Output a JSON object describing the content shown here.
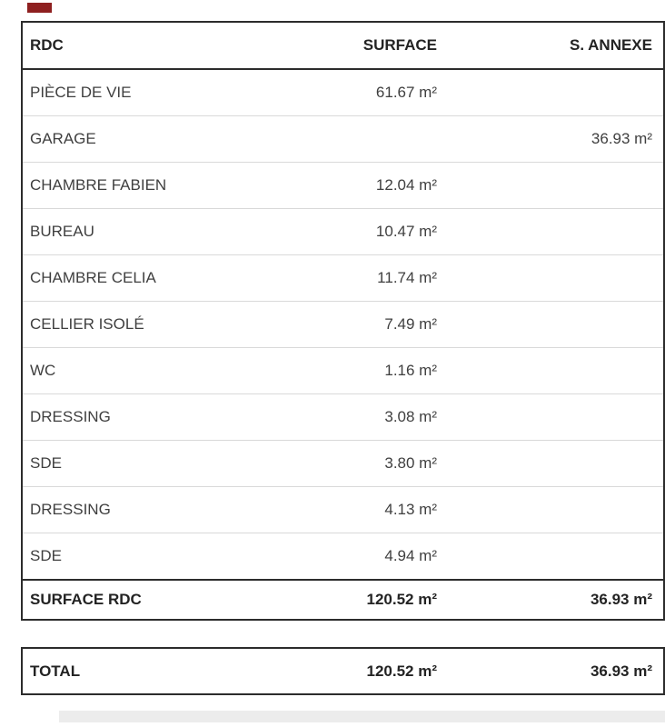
{
  "page": {
    "background_color": "#ffffff",
    "marker_color": "#8e2020",
    "border_color": "#2c2c2c",
    "separator_color": "#d9d9d9"
  },
  "table": {
    "columns": [
      "RDC",
      "SURFACE",
      "S. ANNEXE"
    ],
    "rows": [
      {
        "label": "PIÈCE DE VIE",
        "surface": "61.67 m²",
        "annexe": ""
      },
      {
        "label": "GARAGE",
        "surface": "",
        "annexe": "36.93 m²"
      },
      {
        "label": "CHAMBRE FABIEN",
        "surface": "12.04 m²",
        "annexe": ""
      },
      {
        "label": "BUREAU",
        "surface": "10.47 m²",
        "annexe": ""
      },
      {
        "label": "CHAMBRE CELIA",
        "surface": "11.74 m²",
        "annexe": ""
      },
      {
        "label": "CELLIER ISOLÉ",
        "surface": "7.49 m²",
        "annexe": ""
      },
      {
        "label": "WC",
        "surface": "1.16 m²",
        "annexe": ""
      },
      {
        "label": "DRESSING",
        "surface": "3.08 m²",
        "annexe": ""
      },
      {
        "label": "SDE",
        "surface": "3.80 m²",
        "annexe": ""
      },
      {
        "label": "DRESSING",
        "surface": "4.13 m²",
        "annexe": ""
      },
      {
        "label": "SDE",
        "surface": "4.94 m²",
        "annexe": ""
      }
    ],
    "footer": {
      "label": "SURFACE RDC",
      "surface": "120.52 m²",
      "annexe": "36.93 m²"
    }
  },
  "total": {
    "label": "TOTAL",
    "surface": "120.52 m²",
    "annexe": "36.93 m²"
  }
}
